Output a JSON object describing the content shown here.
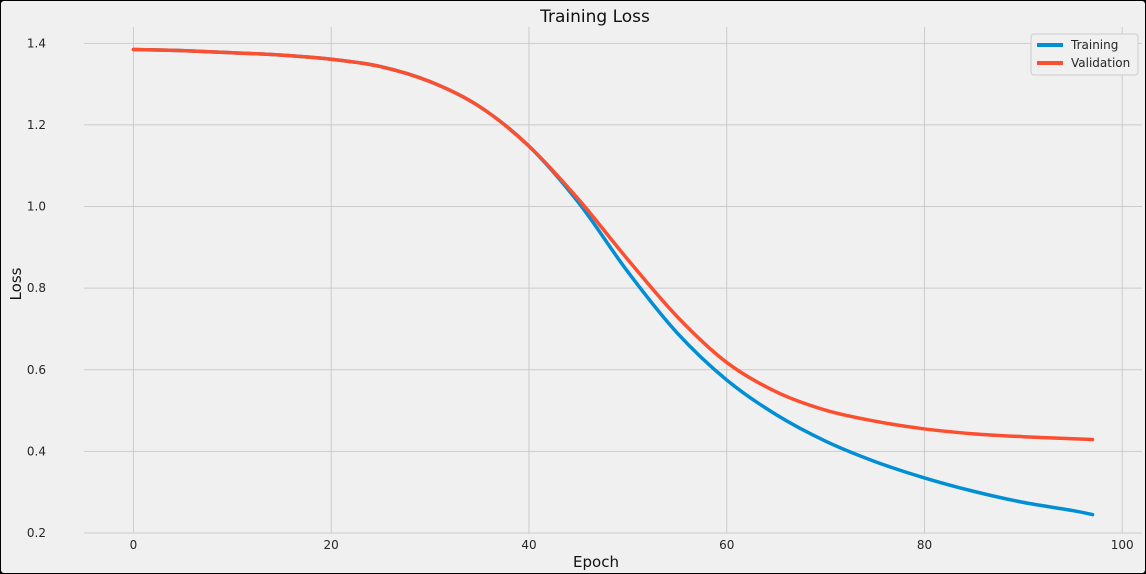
{
  "chart_data": {
    "type": "line",
    "title": "Training Loss",
    "xlabel": "Epoch",
    "ylabel": "Loss",
    "xlim": [
      -5,
      102
    ],
    "ylim": [
      0.2,
      1.44
    ],
    "x_ticks": [
      0,
      20,
      40,
      60,
      80,
      100
    ],
    "y_ticks": [
      0.2,
      0.4,
      0.6,
      0.8,
      1.0,
      1.2,
      1.4
    ],
    "x_tick_labels": [
      "0",
      "20",
      "40",
      "60",
      "80",
      "100"
    ],
    "y_tick_labels": [
      "0.2",
      "0.4",
      "0.6",
      "0.8",
      "1.0",
      "1.2",
      "1.4"
    ],
    "grid": true,
    "legend_position": "top-right",
    "x": [
      0,
      5,
      10,
      15,
      20,
      25,
      30,
      35,
      40,
      45,
      50,
      55,
      60,
      65,
      70,
      75,
      80,
      85,
      90,
      95,
      97
    ],
    "series": [
      {
        "name": "Training",
        "color": "#008fd5",
        "values": [
          1.385,
          1.382,
          1.377,
          1.371,
          1.361,
          1.343,
          1.306,
          1.245,
          1.148,
          1.01,
          0.84,
          0.69,
          0.575,
          0.49,
          0.425,
          0.375,
          0.335,
          0.302,
          0.275,
          0.255,
          0.245
        ]
      },
      {
        "name": "Validation",
        "color": "#fc4f30",
        "values": [
          1.385,
          1.382,
          1.377,
          1.371,
          1.361,
          1.343,
          1.306,
          1.245,
          1.148,
          1.018,
          0.87,
          0.73,
          0.618,
          0.546,
          0.501,
          0.474,
          0.455,
          0.443,
          0.436,
          0.431,
          0.429
        ]
      }
    ]
  }
}
